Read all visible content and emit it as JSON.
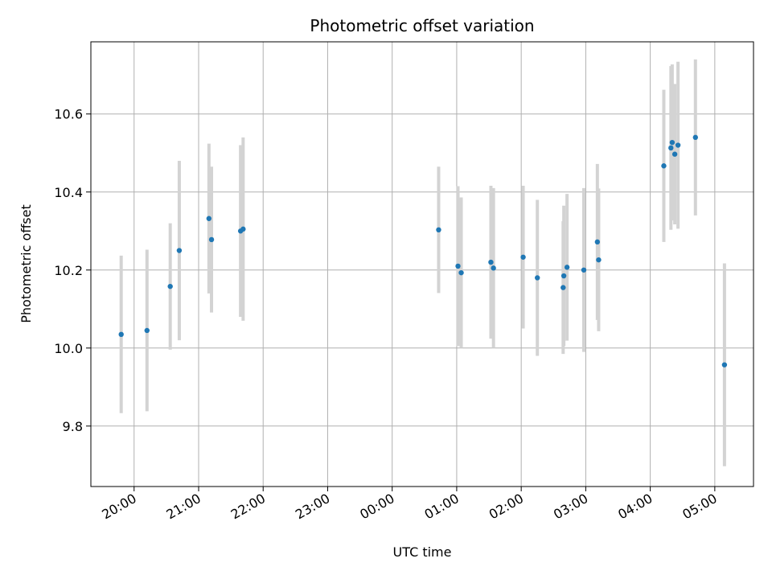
{
  "chart_data": {
    "type": "scatter",
    "title": "Photometric offset variation",
    "xlabel": "UTC time",
    "ylabel": "Photometric offset",
    "x_unit": "hours",
    "xlim": [
      19.33,
      29.6
    ],
    "ylim": [
      9.645,
      10.785
    ],
    "grid": true,
    "x_ticks": [
      {
        "value": 20,
        "label": "20:00"
      },
      {
        "value": 21,
        "label": "21:00"
      },
      {
        "value": 22,
        "label": "22:00"
      },
      {
        "value": 23,
        "label": "23:00"
      },
      {
        "value": 24,
        "label": "00:00"
      },
      {
        "value": 25,
        "label": "01:00"
      },
      {
        "value": 26,
        "label": "02:00"
      },
      {
        "value": 27,
        "label": "03:00"
      },
      {
        "value": 28,
        "label": "04:00"
      },
      {
        "value": 29,
        "label": "05:00"
      }
    ],
    "y_ticks": [
      {
        "value": 9.8,
        "label": "9.8"
      },
      {
        "value": 10.0,
        "label": "10.0"
      },
      {
        "value": 10.2,
        "label": "10.2"
      },
      {
        "value": 10.4,
        "label": "10.4"
      },
      {
        "value": 10.6,
        "label": "10.6"
      }
    ],
    "colors": {
      "marker": "#1f77b4",
      "errorbar": "#d3d3d3",
      "grid": "#b0b0b0"
    },
    "points": [
      {
        "x": 19.8,
        "y": 10.035,
        "err": 0.202
      },
      {
        "x": 20.2,
        "y": 10.045,
        "err": 0.207
      },
      {
        "x": 20.56,
        "y": 10.158,
        "err": 0.162
      },
      {
        "x": 20.7,
        "y": 10.25,
        "err": 0.23
      },
      {
        "x": 21.16,
        "y": 10.332,
        "err": 0.192
      },
      {
        "x": 21.2,
        "y": 10.278,
        "err": 0.187
      },
      {
        "x": 21.65,
        "y": 10.3,
        "err": 0.22
      },
      {
        "x": 21.69,
        "y": 10.305,
        "err": 0.235
      },
      {
        "x": 24.72,
        "y": 10.303,
        "err": 0.162
      },
      {
        "x": 25.02,
        "y": 10.21,
        "err": 0.205
      },
      {
        "x": 25.07,
        "y": 10.193,
        "err": 0.193
      },
      {
        "x": 25.53,
        "y": 10.22,
        "err": 0.196
      },
      {
        "x": 25.57,
        "y": 10.205,
        "err": 0.205
      },
      {
        "x": 26.03,
        "y": 10.233,
        "err": 0.183
      },
      {
        "x": 26.25,
        "y": 10.18,
        "err": 0.2
      },
      {
        "x": 26.65,
        "y": 10.155,
        "err": 0.17
      },
      {
        "x": 26.66,
        "y": 10.185,
        "err": 0.18
      },
      {
        "x": 26.71,
        "y": 10.207,
        "err": 0.188
      },
      {
        "x": 26.97,
        "y": 10.2,
        "err": 0.21
      },
      {
        "x": 27.18,
        "y": 10.272,
        "err": 0.2
      },
      {
        "x": 27.2,
        "y": 10.226,
        "err": 0.183
      },
      {
        "x": 28.21,
        "y": 10.467,
        "err": 0.195
      },
      {
        "x": 28.32,
        "y": 10.513,
        "err": 0.21
      },
      {
        "x": 28.34,
        "y": 10.527,
        "err": 0.2
      },
      {
        "x": 28.38,
        "y": 10.497,
        "err": 0.18
      },
      {
        "x": 28.43,
        "y": 10.52,
        "err": 0.214
      },
      {
        "x": 28.7,
        "y": 10.54,
        "err": 0.2
      },
      {
        "x": 29.15,
        "y": 9.957,
        "err": 0.26
      }
    ]
  }
}
